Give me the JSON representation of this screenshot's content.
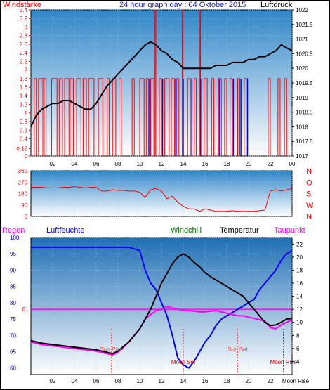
{
  "header": {
    "left_label": "Windstärke",
    "title": "24 hour graph day : 04 Oktober 2015",
    "right_label": "Luftdruck"
  },
  "colors": {
    "frame": "#000000",
    "bg_top": "#2f86c8",
    "bg_bottom": "#ffffff",
    "wind": "#ff0000",
    "gust": "#0000ff",
    "pressure": "#000000",
    "direction": "#ff0000",
    "rain": "#ff0000",
    "humidity": "#0000ff",
    "windchill": "#007700",
    "temperature": "#000000",
    "dewpoint": "#ff00ff",
    "zero_line": "#ff00ff",
    "grid": "#aaccee"
  },
  "x_ticks": [
    "02",
    "04",
    "06",
    "08",
    "10",
    "12",
    "14",
    "16",
    "18",
    "20",
    "22",
    "00"
  ],
  "legend": {
    "rain": "Regen",
    "humidity": "Luftfeuchte",
    "windchill": "Windchill",
    "temperature": "Temperatur",
    "dewpoint": "Taupunkt"
  },
  "direction_labels": [
    "N",
    "W",
    "S",
    "O",
    "N"
  ],
  "annotations": {
    "sun_rise": "Sun Rise",
    "sun_set": "Sun Set",
    "moon_set": "Moon Set",
    "moon_rise": "Moon Rise",
    "moon_rise_axis": "Moon Rise"
  },
  "chart_data": [
    {
      "type": "line",
      "title": "24 hour graph day : 04 Oktober 2015",
      "xlabel": "",
      "x_range": [
        0,
        24
      ],
      "y_left": {
        "label": "Windstärke",
        "range": [
          0,
          3.4
        ],
        "ticks": [
          0,
          0.17,
          0.4,
          0.6,
          0.8,
          1,
          1.2,
          1.4,
          1.6,
          1.8,
          2,
          2.2,
          2.4,
          2.6,
          2.8,
          3,
          3.2,
          3.4
        ],
        "tick_labels": [
          "0",
          "0.17",
          "0.4",
          "0.6",
          "0.8",
          "1",
          "1.2",
          "1.4",
          "1.6",
          "1.8",
          "2",
          "2.2",
          "2.4",
          "2.6",
          "2.8",
          "3",
          "3.2",
          "3.4"
        ]
      },
      "y_right": {
        "label": "Luftdruck",
        "range": [
          1017,
          1022
        ],
        "ticks": [
          1017,
          1017.5,
          1018,
          1018.5,
          1019,
          1019.5,
          1020,
          1020.5,
          1021,
          1021.5,
          1022
        ],
        "tick_labels": [
          "1017",
          "1017.5",
          "1018",
          "1018.5",
          "1019",
          "1019.5",
          "1020",
          "1020.5",
          "1021",
          "1021.5",
          "1022"
        ]
      },
      "series": [
        {
          "name": "Luftdruck",
          "axis": "right",
          "x": [
            0,
            0.5,
            1,
            1.5,
            2,
            2.5,
            3,
            3.5,
            4,
            4.5,
            5,
            5.5,
            6,
            6.5,
            7,
            7.5,
            8,
            8.5,
            9,
            9.5,
            10,
            10.5,
            11,
            11.5,
            12,
            12.5,
            13,
            13.5,
            14,
            14.5,
            15,
            15.5,
            16,
            16.5,
            17,
            17.5,
            18,
            18.5,
            19,
            19.5,
            20,
            20.5,
            21,
            21.5,
            22,
            22.5,
            23,
            23.5,
            24
          ],
          "y": [
            1018,
            1018.4,
            1018.6,
            1018.7,
            1018.8,
            1018.8,
            1018.9,
            1018.9,
            1018.8,
            1018.7,
            1018.6,
            1018.6,
            1018.8,
            1019.1,
            1019.4,
            1019.6,
            1019.8,
            1020.0,
            1020.2,
            1020.4,
            1020.6,
            1020.8,
            1020.9,
            1020.8,
            1020.6,
            1020.5,
            1020.3,
            1020.2,
            1020.0,
            1020.0,
            1020.0,
            1020.0,
            1020.0,
            1020.0,
            1020.1,
            1020.1,
            1020.1,
            1020.2,
            1020.2,
            1020.2,
            1020.3,
            1020.3,
            1020.4,
            1020.4,
            1020.5,
            1020.6,
            1020.8,
            1020.7,
            1020.6
          ]
        },
        {
          "name": "Windstärke",
          "axis": "left",
          "bars": [
            [
              0.3,
              0.2,
              1.8
            ],
            [
              0.7,
              0.5,
              1.8
            ],
            [
              1.1,
              0.3,
              1.8
            ],
            [
              1.9,
              0.5,
              1.8
            ],
            [
              2.6,
              0.3,
              1.8
            ],
            [
              3.1,
              0.4,
              1.8
            ],
            [
              3.6,
              0.3,
              1.8
            ],
            [
              4.2,
              0.4,
              1.8
            ],
            [
              4.8,
              0.3,
              1.8
            ],
            [
              5.3,
              0.5,
              1.8
            ],
            [
              6.2,
              0.4,
              1.8
            ],
            [
              7.0,
              0.2,
              1.8
            ],
            [
              7.5,
              0.3,
              1.8
            ],
            [
              8.1,
              0.2,
              1.8
            ],
            [
              9.3,
              0.2,
              1.8
            ],
            [
              10.0,
              0.4,
              1.8
            ],
            [
              10.6,
              0.2,
              1.8
            ],
            [
              11.0,
              0.3,
              1.8
            ],
            [
              11.4,
              0.08,
              3.4
            ],
            [
              11.8,
              0.2,
              1.8
            ],
            [
              12.3,
              0.4,
              1.8
            ],
            [
              12.9,
              0.3,
              1.8
            ],
            [
              13.4,
              0.2,
              1.8
            ],
            [
              13.9,
              0.08,
              3.4
            ],
            [
              14.4,
              0.3,
              1.8
            ],
            [
              15.0,
              0.2,
              1.8
            ],
            [
              15.5,
              0.08,
              3.4
            ],
            [
              15.9,
              0.3,
              1.8
            ],
            [
              16.6,
              0.2,
              1.8
            ],
            [
              17.2,
              0.3,
              1.8
            ],
            [
              17.8,
              0.2,
              1.8
            ],
            [
              18.3,
              0.2,
              1.8
            ],
            [
              19.0,
              0.2,
              1.8
            ],
            [
              19.6,
              0.3,
              1.8
            ],
            [
              21.8,
              0.2,
              1.8
            ],
            [
              22.7,
              0.2,
              1.8
            ],
            [
              23.3,
              0.2,
              1.8
            ]
          ]
        },
        {
          "name": "Gust",
          "axis": "left",
          "bars": [
            [
              10.9,
              0.05,
              1.8
            ],
            [
              12.1,
              0.05,
              1.8
            ],
            [
              13.3,
              0.05,
              1.8
            ],
            [
              14.0,
              0.05,
              1.8
            ],
            [
              14.8,
              0.05,
              1.8
            ],
            [
              15.6,
              0.05,
              1.8
            ],
            [
              17.3,
              0.05,
              1.8
            ],
            [
              18.6,
              0.05,
              1.8
            ],
            [
              19.3,
              0.05,
              1.8
            ],
            [
              19.9,
              0.05,
              1.8
            ]
          ]
        }
      ]
    },
    {
      "type": "line",
      "title": "",
      "x_range": [
        0,
        24
      ],
      "y_left": {
        "range": [
          0,
          360
        ],
        "ticks": [
          0,
          90,
          180,
          270,
          360
        ],
        "tick_labels": [
          "0",
          "90",
          "180",
          "270",
          "360"
        ]
      },
      "y_right_labels": [
        "N",
        "W",
        "S",
        "O",
        "N"
      ],
      "series": [
        {
          "name": "direction",
          "x": [
            0,
            0.5,
            1,
            1.5,
            2,
            2.5,
            3,
            3.5,
            4,
            4.5,
            5,
            5.5,
            6,
            6.5,
            7,
            7.5,
            8,
            8.5,
            9,
            9.5,
            10,
            10.5,
            11,
            11.5,
            12,
            12.5,
            13,
            13.5,
            14,
            14.5,
            15,
            15.5,
            16,
            16.5,
            17,
            17.5,
            18,
            18.5,
            19,
            19.5,
            20,
            20.5,
            21,
            21.5,
            22,
            22.5,
            23,
            23.5,
            24
          ],
          "y": [
            230,
            230,
            230,
            225,
            225,
            225,
            230,
            230,
            235,
            230,
            225,
            230,
            230,
            200,
            200,
            210,
            205,
            205,
            200,
            200,
            190,
            150,
            210,
            220,
            200,
            140,
            160,
            110,
            80,
            60,
            60,
            40,
            60,
            50,
            40,
            40,
            40,
            45,
            40,
            40,
            40,
            40,
            45,
            50,
            200,
            210,
            200,
            210,
            220
          ]
        }
      ]
    },
    {
      "type": "line",
      "title": "",
      "x_range": [
        0,
        24
      ],
      "y_left": {
        "label": "Luftfeuchte",
        "range": [
          58,
          100
        ],
        "ticks": [
          60,
          65,
          70,
          75,
          80,
          85,
          90,
          95,
          100
        ],
        "tick_labels": [
          "60",
          "65",
          "70",
          "75",
          "80",
          "85",
          "90",
          "95",
          "100"
        ]
      },
      "y_right": {
        "label": "Temperatur",
        "range": [
          2,
          23
        ],
        "ticks": [
          4,
          6,
          8,
          10,
          12,
          14,
          16,
          18,
          20,
          22
        ],
        "tick_labels": [
          "4",
          "6",
          "8",
          "10",
          "12",
          "14",
          "16",
          "18",
          "20",
          "22"
        ]
      },
      "rain_axis": {
        "label": "Regen",
        "ticks": [
          0
        ],
        "tick_labels": [
          "0"
        ]
      },
      "series": [
        {
          "name": "Luftfeuchte",
          "axis": "left",
          "x": [
            0,
            1,
            2,
            3,
            4,
            5,
            6,
            7,
            8,
            9,
            10,
            10.5,
            11,
            11.5,
            12,
            12.5,
            13,
            13.5,
            14,
            14.5,
            15,
            15.5,
            16,
            16.5,
            17,
            17.5,
            18,
            18.5,
            19,
            19.5,
            20,
            20.5,
            21,
            21.5,
            22,
            22.5,
            23,
            23.5,
            24
          ],
          "y": [
            97,
            97,
            97,
            97,
            97,
            97,
            97,
            97,
            97,
            97,
            96,
            90,
            86,
            84,
            80,
            76,
            70,
            63,
            61,
            60,
            62,
            65,
            68,
            70,
            73,
            75,
            76,
            77,
            78,
            79,
            80,
            81,
            84,
            86,
            88,
            90,
            93,
            95,
            96
          ]
        },
        {
          "name": "Temperatur",
          "axis": "right",
          "x": [
            0,
            1,
            2,
            3,
            4,
            5,
            6,
            7,
            7.5,
            8,
            9,
            10,
            10.5,
            11,
            11.5,
            12,
            12.5,
            13,
            13.5,
            14,
            14.5,
            15,
            15.5,
            16,
            16.5,
            17,
            17.5,
            18,
            18.5,
            19,
            19.5,
            20,
            20.5,
            21,
            21.5,
            22,
            22.5,
            23,
            23.5,
            24
          ],
          "y": [
            7.2,
            6.8,
            6.6,
            6.4,
            6.2,
            6.0,
            5.8,
            5.4,
            5.2,
            5.6,
            7,
            9,
            10.5,
            12,
            14,
            16,
            17.5,
            19,
            20,
            20.5,
            20,
            19.2,
            18.5,
            17.6,
            17,
            16.5,
            16,
            15.5,
            15,
            14.5,
            14,
            13,
            12,
            11,
            10,
            9.5,
            9.6,
            10,
            10.5,
            10.6
          ]
        },
        {
          "name": "Taupunkt",
          "axis": "right",
          "x": [
            0,
            1,
            2,
            3,
            4,
            5,
            6,
            7,
            7.5,
            8,
            9,
            10,
            10.5,
            11,
            11.5,
            12,
            12.5,
            13,
            13.5,
            14,
            14.5,
            15,
            15.5,
            16,
            16.5,
            17,
            17.5,
            18,
            18.5,
            19,
            19.5,
            20,
            20.5,
            21,
            21.5,
            22,
            22.5,
            23,
            23.5,
            24
          ],
          "y": [
            7,
            6.6,
            6.4,
            6.2,
            6,
            5.8,
            5.6,
            5.2,
            5,
            5.4,
            7,
            9,
            10.5,
            11.2,
            11.8,
            12,
            12.4,
            12.2,
            12.0,
            11.8,
            11.8,
            11.7,
            11.6,
            11.6,
            11.7,
            11.8,
            11.6,
            11.4,
            11.2,
            11.0,
            11.0,
            10.8,
            10.6,
            10.4,
            10.2,
            9.2,
            9.0,
            9.6,
            10,
            10.4
          ]
        },
        {
          "name": "Windchill",
          "axis": "right",
          "x": [
            0,
            24
          ],
          "y": [
            12,
            12
          ]
        }
      ],
      "markers": [
        {
          "label": "Sun Rise",
          "x": 7.4
        },
        {
          "label": "Moon Set",
          "x": 14.0
        },
        {
          "label": "Sun Set",
          "x": 19.0
        },
        {
          "label": "Moon Rise",
          "x": 23.2
        }
      ]
    }
  ]
}
